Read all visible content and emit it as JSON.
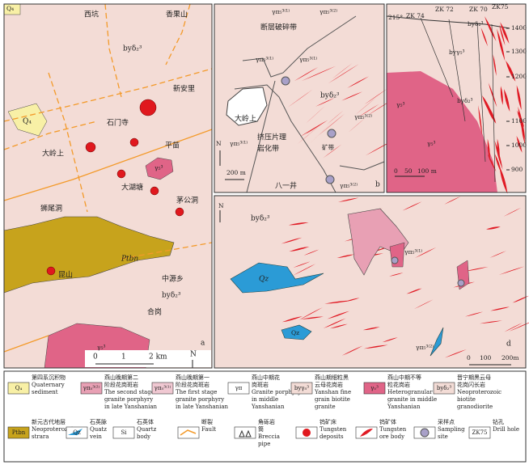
{
  "panel_a": {
    "labels": [
      "Q₄",
      "西坑",
      "香果山",
      "byδ₂³",
      "新安里",
      "石门寺",
      "Q₄",
      "大岭上",
      "平苗",
      "γ₅³",
      "大湖塘",
      "茅公洞",
      "狮尾洞",
      "Ptbn",
      "昆山",
      "中源乡",
      "byδ₂³",
      "合岗",
      "γ₅³"
    ],
    "scale": [
      "0",
      "1",
      "2 km"
    ],
    "north": "N",
    "letter": "a"
  },
  "panel_b": {
    "labels": [
      "γπ₅³⁽¹⁾",
      "γπ₅³⁽²⁾",
      "断层破碎带",
      "γπ₅³⁽¹⁾",
      "γπ₅³⁽¹⁾",
      "byδ₂³",
      "大岭上",
      "挤压片理",
      "岩化带",
      "矿带",
      "γπ₅³⁽¹⁾",
      "γπ₅³⁽²⁾",
      "八一井",
      "γπ₅³⁽²⁾"
    ],
    "scale": "200 m",
    "north": "N",
    "letter": "b"
  },
  "panel_c": {
    "labels": [
      "215°",
      "ZK 74",
      "ZK 72",
      "ZK 70",
      "ZK75",
      "byδ₂³",
      "byγ₅³",
      "byδ₂³",
      "γ₅³",
      "γ₅³"
    ],
    "elevations": [
      "1400",
      "1300",
      "1200",
      "1100",
      "1000",
      "900"
    ],
    "scale": [
      "0",
      "50",
      "100 m"
    ]
  },
  "panel_d": {
    "labels": [
      "byδ₂³",
      "Qz",
      "γπ₅³⁽¹⁾",
      "Qz",
      "γπ₅³⁽²⁾"
    ],
    "scale": [
      "0",
      "100",
      "200m"
    ],
    "north": "N",
    "letter": "d"
  },
  "legend": [
    {
      "symbol": "Q₄",
      "zh": [
        "第四系沉积物"
      ],
      "en": [
        "Quaternary",
        "sediment"
      ]
    },
    {
      "symbol": "γπ₅³⁽²⁾",
      "zh": [
        "燕山晚期第二",
        "阶段花岗斑岩"
      ],
      "en": [
        "The second stage",
        "granite porphyry",
        "in late Yanshanian"
      ]
    },
    {
      "symbol": "γπ₅³⁽¹⁾",
      "zh": [
        "燕山晚期第一",
        "阶段花岗斑岩"
      ],
      "en": [
        "The first stage",
        "granite porphyry",
        "in late Yanshanian"
      ]
    },
    {
      "symbol": "γπ",
      "zh": [
        "燕山中期花",
        "岗斑岩"
      ],
      "en": [
        "Granite porphyry",
        "in middle",
        "Yanshanian"
      ]
    },
    {
      "symbol": "byγ₅³",
      "zh": [
        "燕山期细粒黑",
        "云母花岗岩"
      ],
      "en": [
        "Yanshan fine",
        "grain biotite",
        "granite"
      ]
    },
    {
      "symbol": "γ₅³",
      "zh": [
        "燕山中期不等",
        "粒花岗岩"
      ],
      "en": [
        "Heterogranular",
        "granite in middle",
        "Yanshanian"
      ]
    },
    {
      "symbol": "byδ₂³",
      "zh": [
        "晋宁期黑云母",
        "花岗闪长岩"
      ],
      "en": [
        "Neoproterozoic",
        "biotite",
        "granodiorite"
      ]
    },
    {
      "symbol": "Ptbn",
      "zh": [
        "新元古代地层"
      ],
      "en": [
        "Neoproterozoic",
        "strara"
      ]
    },
    {
      "symbol": "Qz",
      "zh": [
        "石英脉"
      ],
      "en": [
        "Quatz",
        "vein"
      ]
    },
    {
      "symbol": "Si",
      "zh": [
        "石英体"
      ],
      "en": [
        "Quartz",
        "body"
      ]
    },
    {
      "symbol": "",
      "zh": [
        "断裂"
      ],
      "en": [
        "Fault"
      ]
    },
    {
      "symbol": "",
      "zh": [
        "角砾岩",
        "筒"
      ],
      "en": [
        "Breccia",
        "pipe"
      ]
    },
    {
      "symbol": "",
      "zh": [
        "钨矿床"
      ],
      "en": [
        "Tungsten",
        "deposits"
      ]
    },
    {
      "symbol": "",
      "zh": [
        "钨矿体"
      ],
      "en": [
        "Tungsten",
        "ore body"
      ]
    },
    {
      "symbol": "",
      "zh": [
        "采样点"
      ],
      "en": [
        "Sampling",
        "site"
      ]
    },
    {
      "symbol": "ZK75",
      "zh": [
        "钻孔"
      ],
      "en": [
        "Drill hole"
      ]
    }
  ]
}
